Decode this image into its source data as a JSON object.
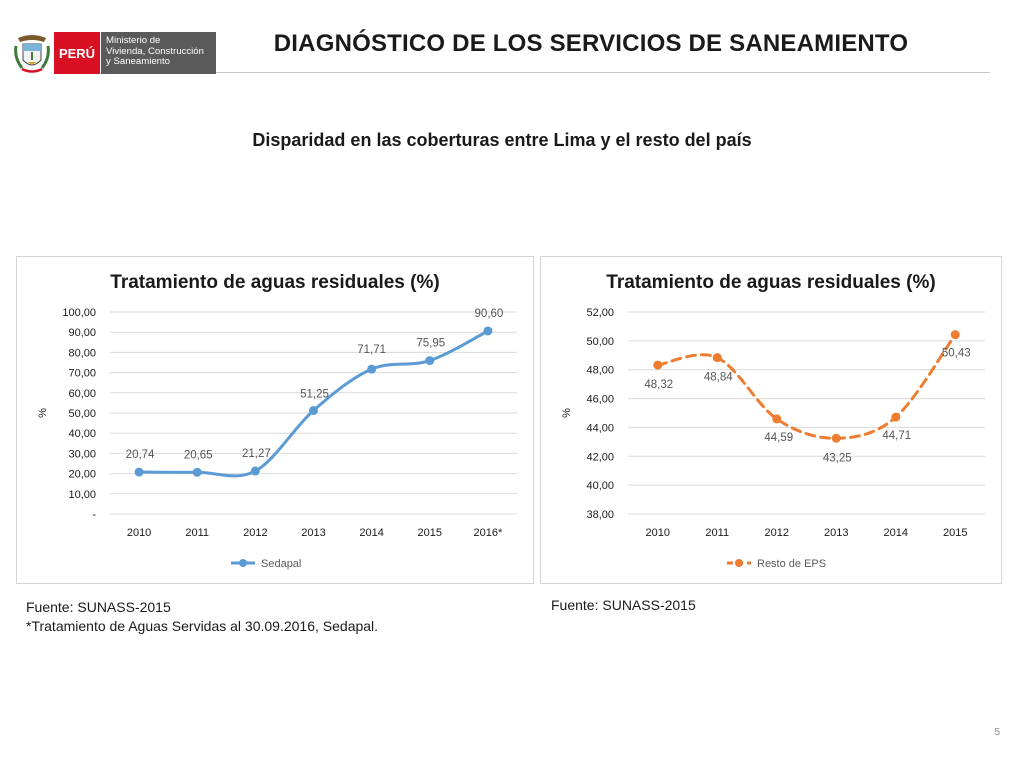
{
  "header": {
    "logo": {
      "country": "PERÚ",
      "ministry_lines": [
        "Ministerio de",
        "Vivienda, Construcción",
        "y Saneamiento"
      ],
      "brand_color": "#d91023",
      "ministry_color": "#5a5a5a"
    },
    "title": "DIAGNÓSTICO DE LOS SERVICIOS DE SANEAMIENTO"
  },
  "subtitle": "Disparidad en las coberturas entre Lima y el resto del país",
  "chart_data": [
    {
      "type": "line",
      "title": "Tratamiento de aguas residuales (%)",
      "xlabel": "",
      "ylabel": "%",
      "categories": [
        "2010",
        "2011",
        "2012",
        "2013",
        "2014",
        "2015",
        "2016*"
      ],
      "series": [
        {
          "name": "Sedapal",
          "values": [
            20.74,
            20.65,
            21.27,
            51.25,
            71.71,
            75.95,
            90.6
          ],
          "labels": [
            "20,74",
            "20,65",
            "21,27",
            "51,25",
            "71,71",
            "75,95",
            "90,60"
          ],
          "color": "#5b9bd5",
          "style": "solid-smooth"
        }
      ],
      "ylim": [
        0,
        100
      ],
      "yticks": [
        0,
        10,
        20,
        30,
        40,
        50,
        60,
        70,
        80,
        90,
        100
      ],
      "ytick_labels": [
        "-",
        "10,00",
        "20,00",
        "30,00",
        "40,00",
        "50,00",
        "60,00",
        "70,00",
        "80,00",
        "90,00",
        "100,00"
      ],
      "grid": true,
      "legend": "bottom"
    },
    {
      "type": "line",
      "title": "Tratamiento de aguas residuales (%)",
      "xlabel": "",
      "ylabel": "%",
      "categories": [
        "2010",
        "2011",
        "2012",
        "2013",
        "2014",
        "2015"
      ],
      "series": [
        {
          "name": "Resto de EPS",
          "values": [
            48.32,
            48.84,
            44.59,
            43.25,
            44.71,
            50.43
          ],
          "labels": [
            "48,32",
            "48,84",
            "44,59",
            "43,25",
            "44,71",
            "50,43"
          ],
          "color": "#ed7d31",
          "style": "dashed-smooth"
        }
      ],
      "ylim": [
        38,
        52
      ],
      "yticks": [
        38,
        40,
        42,
        44,
        46,
        48,
        50,
        52
      ],
      "ytick_labels": [
        "38,00",
        "40,00",
        "42,00",
        "44,00",
        "46,00",
        "48,00",
        "50,00",
        "52,00"
      ],
      "grid": true,
      "legend": "bottom"
    }
  ],
  "footnotes": {
    "left": [
      "Fuente: SUNASS-2015",
      "*Tratamiento de Aguas Servidas al 30.09.2016, Sedapal."
    ],
    "right": [
      "Fuente: SUNASS-2015"
    ]
  },
  "page_number": "5"
}
